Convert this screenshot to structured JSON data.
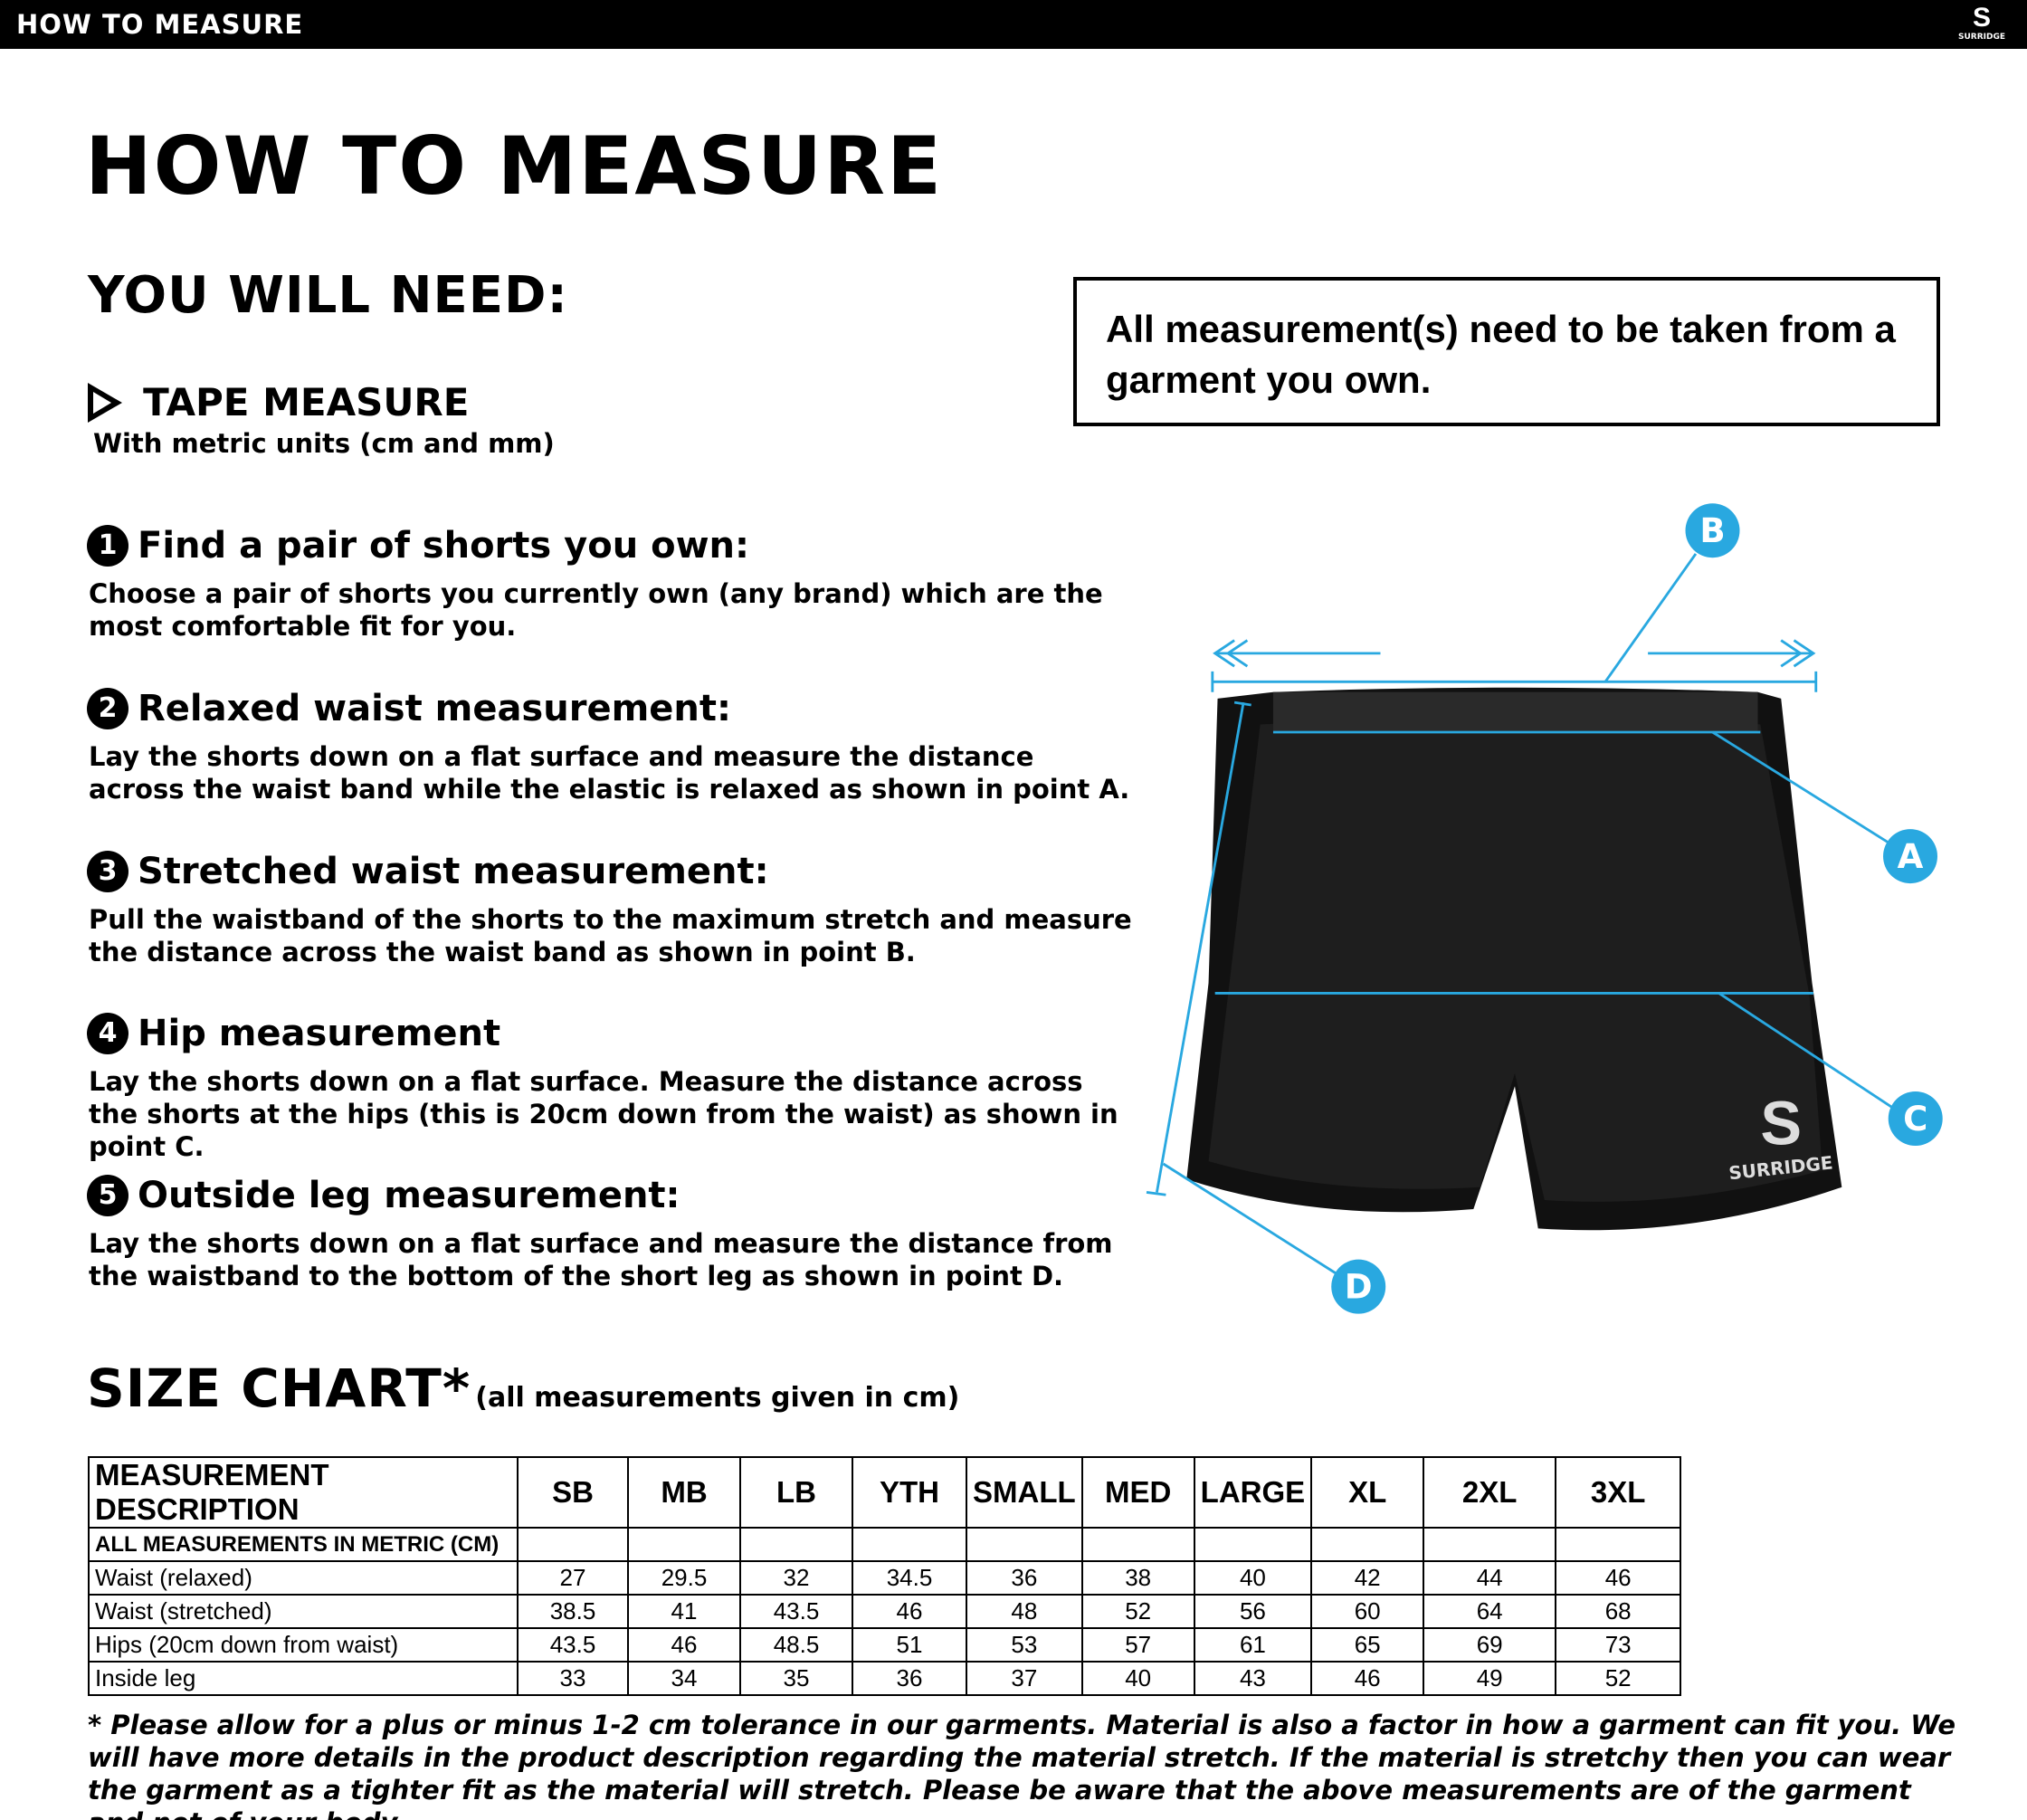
{
  "header": {
    "title": "HOW TO MEASURE",
    "logo_text": "SURRIDGE"
  },
  "title": "HOW TO MEASURE",
  "you_will_need": "YOU WILL NEED:",
  "note": "All measurement(s) need to be taken from a garment you own.",
  "tape": {
    "title": "TAPE MEASURE",
    "subtitle": "With metric units (cm and mm)"
  },
  "steps": [
    {
      "num": "1",
      "title": "Find a pair of shorts you own:",
      "body": "Choose a pair of shorts you currently own (any brand) which are the most comfortable fit for you."
    },
    {
      "num": "2",
      "title": "Relaxed waist measurement:",
      "body": "Lay the shorts down on a flat surface and measure the distance across the waist band while the elastic is relaxed as shown in point A."
    },
    {
      "num": "3",
      "title": "Stretched waist measurement:",
      "body": "Pull the waistband of the shorts to the maximum stretch and measure the distance across the waist band as shown in point B."
    },
    {
      "num": "4",
      "title": "Hip measurement",
      "body": "Lay the shorts down on a flat surface. Measure the distance across the shorts at the hips (this is 20cm down from the waist)  as shown in point C."
    },
    {
      "num": "5",
      "title": "Outside leg measurement:",
      "body": "Lay the shorts down on a flat surface and measure the distance from the waistband to the bottom of the short leg as shown in point D."
    }
  ],
  "diagram": {
    "labels": [
      "A",
      "B",
      "C",
      "D"
    ],
    "garment_logo": "SURRIDGE",
    "accent": "#29a8e0"
  },
  "size_chart": {
    "title": "SIZE CHART*",
    "units_note": "(all measurements given in cm)",
    "header": [
      "MEASUREMENT DESCRIPTION",
      "SB",
      "MB",
      "LB",
      "YTH",
      "SMALL",
      "MED",
      "LARGE",
      "XL",
      "2XL",
      "3XL"
    ],
    "metric_label": "ALL MEASUREMENTS IN METRIC (CM)",
    "rows": [
      [
        "Waist (relaxed)",
        "27",
        "29.5",
        "32",
        "34.5",
        "36",
        "38",
        "40",
        "42",
        "44",
        "46"
      ],
      [
        "Waist (stretched)",
        "38.5",
        "41",
        "43.5",
        "46",
        "48",
        "52",
        "56",
        "60",
        "64",
        "68"
      ],
      [
        "Hips (20cm down from waist)",
        "43.5",
        "46",
        "48.5",
        "51",
        "53",
        "57",
        "61",
        "65",
        "69",
        "73"
      ],
      [
        "Inside leg",
        "33",
        "34",
        "35",
        "36",
        "37",
        "40",
        "43",
        "46",
        "49",
        "52"
      ]
    ]
  },
  "footnote": "* Please allow for a plus or minus 1-2 cm tolerance in our garments. Material is also a factor in how a garment can fit you. We will have more details in the product description regarding the material stretch.  If the material is stretchy then you can wear the garment as a tighter fit as the material will stretch.  Please be aware that the above measurements are of the garment and not of your body."
}
